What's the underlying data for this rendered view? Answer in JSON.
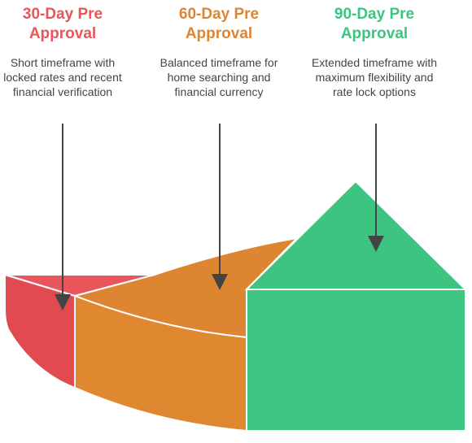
{
  "colors": {
    "red": "#E8555A",
    "red_dark": "#E14A50",
    "orange": "#DD8530",
    "orange_dark": "#E0882F",
    "green": "#3CC480",
    "green_dark": "#40C683",
    "arrow": "#444444"
  },
  "segments": [
    {
      "title": "30-Day Pre Approval",
      "description": "Short timeframe with locked rates and recent financial verification",
      "color": "#E8555A"
    },
    {
      "title": "60-Day Pre Approval",
      "description": "Balanced timeframe for home searching and financial currency",
      "color": "#DD8530"
    },
    {
      "title": "90-Day Pre Approval",
      "description": "Extended timeframe with maximum flexibility and rate lock options",
      "color": "#3CC480"
    }
  ]
}
